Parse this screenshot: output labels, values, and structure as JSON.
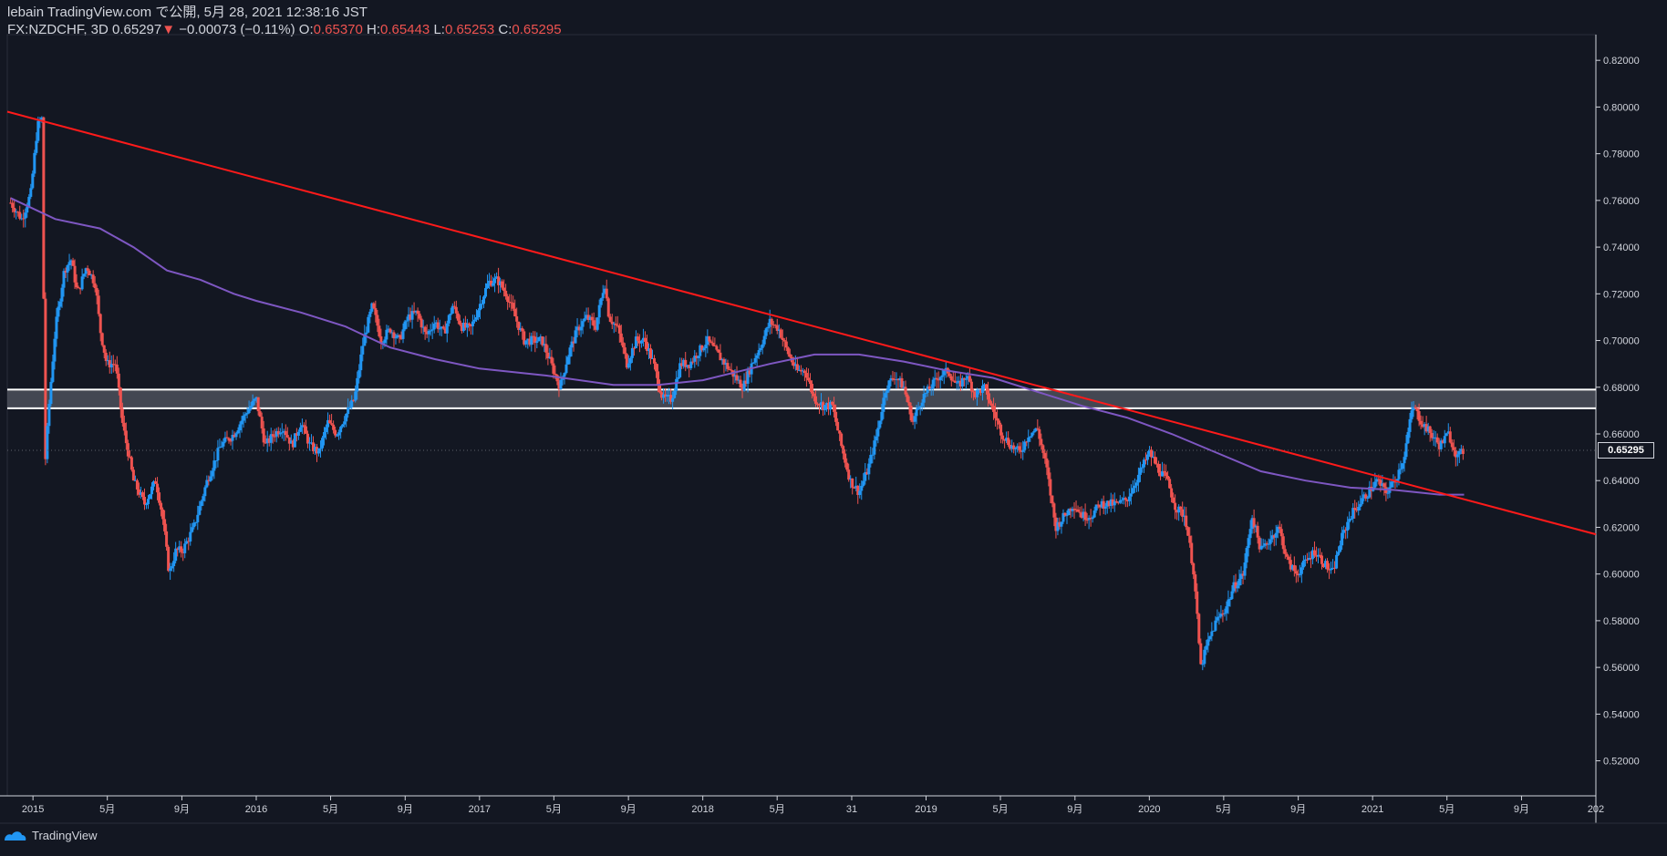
{
  "header": {
    "publisher_line": "lebain TradingView.com で公開, 5月 28, 2021 12:38:16 JST",
    "symbol": "FX:NZDCHF, 3D",
    "last": "0.65297",
    "change_arrow": "▼",
    "change": "−0.00073 (−0.11%)",
    "o_label": "O:",
    "o_val": "0.65370",
    "h_label": "H:",
    "h_val": "0.65443",
    "l_label": "L:",
    "l_val": "0.65253",
    "c_label": "C:",
    "c_val": "0.65295"
  },
  "footer": {
    "brand": "TradingView"
  },
  "colors": {
    "background": "#131722",
    "up": "#2196f3",
    "down": "#ef5350",
    "trendline": "#ff1a1a",
    "ma": "#7e57c2",
    "zone_border": "#ffffff",
    "zone_fill": "#6b6f7a"
  },
  "chart_data": {
    "type": "candlestick",
    "symbol": "FX:NZDCHF",
    "timeframe": "3D",
    "y_ticks": [
      "0.82000",
      "0.80000",
      "0.78000",
      "0.76000",
      "0.74000",
      "0.72000",
      "0.70000",
      "0.68000",
      "0.66000",
      "0.64000",
      "0.62000",
      "0.60000",
      "0.58000",
      "0.56000",
      "0.54000",
      "0.52000"
    ],
    "ylim": [
      0.505,
      0.831
    ],
    "x_tick_labels": [
      "2015",
      "5月",
      "9月",
      "2016",
      "5月",
      "9月",
      "2017",
      "5月",
      "9月",
      "2018",
      "5月",
      "31",
      "2019",
      "5月",
      "9月",
      "2020",
      "5月",
      "9月",
      "2021",
      "5月",
      "9月",
      "202"
    ],
    "x_ticks_t": [
      2015.0,
      2015.333,
      2015.667,
      2016.0,
      2016.333,
      2016.667,
      2017.0,
      2017.333,
      2017.667,
      2018.0,
      2018.333,
      2018.667,
      2019.0,
      2019.333,
      2019.667,
      2020.0,
      2020.333,
      2020.667,
      2021.0,
      2021.333,
      2021.667,
      2022.0
    ],
    "xlim": [
      2014.885,
      2022.0
    ],
    "last_price_label": "0.65295",
    "last_price": 0.65295,
    "price_path": [
      [
        2014.9,
        0.759
      ],
      [
        2014.95,
        0.752
      ],
      [
        2014.99,
        0.763
      ],
      [
        2015.02,
        0.792
      ],
      [
        2015.04,
        0.795
      ],
      [
        2015.055,
        0.648
      ],
      [
        2015.07,
        0.67
      ],
      [
        2015.1,
        0.705
      ],
      [
        2015.14,
        0.73
      ],
      [
        2015.17,
        0.735
      ],
      [
        2015.2,
        0.72
      ],
      [
        2015.24,
        0.732
      ],
      [
        2015.28,
        0.724
      ],
      [
        2015.3,
        0.705
      ],
      [
        2015.33,
        0.69
      ],
      [
        2015.37,
        0.69
      ],
      [
        2015.4,
        0.665
      ],
      [
        2015.45,
        0.64
      ],
      [
        2015.5,
        0.63
      ],
      [
        2015.55,
        0.64
      ],
      [
        2015.58,
        0.625
      ],
      [
        2015.61,
        0.6
      ],
      [
        2015.64,
        0.61
      ],
      [
        2015.67,
        0.61
      ],
      [
        2015.72,
        0.62
      ],
      [
        2015.78,
        0.64
      ],
      [
        2015.84,
        0.655
      ],
      [
        2015.9,
        0.66
      ],
      [
        2015.96,
        0.67
      ],
      [
        2016.0,
        0.675
      ],
      [
        2016.04,
        0.655
      ],
      [
        2016.08,
        0.66
      ],
      [
        2016.12,
        0.663
      ],
      [
        2016.16,
        0.655
      ],
      [
        2016.2,
        0.665
      ],
      [
        2016.24,
        0.655
      ],
      [
        2016.28,
        0.652
      ],
      [
        2016.32,
        0.665
      ],
      [
        2016.36,
        0.66
      ],
      [
        2016.4,
        0.668
      ],
      [
        2016.44,
        0.675
      ],
      [
        2016.48,
        0.7
      ],
      [
        2016.52,
        0.715
      ],
      [
        2016.56,
        0.7
      ],
      [
        2016.6,
        0.705
      ],
      [
        2016.64,
        0.7
      ],
      [
        2016.68,
        0.71
      ],
      [
        2016.72,
        0.712
      ],
      [
        2016.76,
        0.702
      ],
      [
        2016.8,
        0.708
      ],
      [
        2016.84,
        0.703
      ],
      [
        2016.88,
        0.715
      ],
      [
        2016.92,
        0.706
      ],
      [
        2016.96,
        0.705
      ],
      [
        2017.0,
        0.715
      ],
      [
        2017.04,
        0.725
      ],
      [
        2017.08,
        0.726
      ],
      [
        2017.12,
        0.72
      ],
      [
        2017.16,
        0.71
      ],
      [
        2017.2,
        0.7
      ],
      [
        2017.24,
        0.7
      ],
      [
        2017.28,
        0.7
      ],
      [
        2017.32,
        0.69
      ],
      [
        2017.36,
        0.68
      ],
      [
        2017.4,
        0.695
      ],
      [
        2017.44,
        0.705
      ],
      [
        2017.48,
        0.71
      ],
      [
        2017.52,
        0.706
      ],
      [
        2017.56,
        0.725
      ],
      [
        2017.58,
        0.71
      ],
      [
        2017.62,
        0.705
      ],
      [
        2017.66,
        0.69
      ],
      [
        2017.7,
        0.7
      ],
      [
        2017.74,
        0.7
      ],
      [
        2017.78,
        0.69
      ],
      [
        2017.82,
        0.675
      ],
      [
        2017.86,
        0.675
      ],
      [
        2017.9,
        0.69
      ],
      [
        2017.94,
        0.69
      ],
      [
        2017.98,
        0.695
      ],
      [
        2018.02,
        0.7
      ],
      [
        2018.06,
        0.695
      ],
      [
        2018.1,
        0.69
      ],
      [
        2018.14,
        0.685
      ],
      [
        2018.18,
        0.68
      ],
      [
        2018.22,
        0.69
      ],
      [
        2018.26,
        0.698
      ],
      [
        2018.3,
        0.708
      ],
      [
        2018.34,
        0.705
      ],
      [
        2018.38,
        0.695
      ],
      [
        2018.42,
        0.687
      ],
      [
        2018.46,
        0.687
      ],
      [
        2018.5,
        0.675
      ],
      [
        2018.54,
        0.672
      ],
      [
        2018.58,
        0.672
      ],
      [
        2018.62,
        0.655
      ],
      [
        2018.66,
        0.64
      ],
      [
        2018.7,
        0.635
      ],
      [
        2018.74,
        0.645
      ],
      [
        2018.78,
        0.66
      ],
      [
        2018.82,
        0.68
      ],
      [
        2018.86,
        0.685
      ],
      [
        2018.9,
        0.68
      ],
      [
        2018.94,
        0.665
      ],
      [
        2018.98,
        0.675
      ],
      [
        2019.02,
        0.68
      ],
      [
        2019.06,
        0.685
      ],
      [
        2019.1,
        0.687
      ],
      [
        2019.14,
        0.68
      ],
      [
        2019.18,
        0.685
      ],
      [
        2019.22,
        0.677
      ],
      [
        2019.26,
        0.68
      ],
      [
        2019.3,
        0.67
      ],
      [
        2019.34,
        0.66
      ],
      [
        2019.38,
        0.655
      ],
      [
        2019.42,
        0.652
      ],
      [
        2019.46,
        0.66
      ],
      [
        2019.5,
        0.662
      ],
      [
        2019.54,
        0.645
      ],
      [
        2019.58,
        0.62
      ],
      [
        2019.62,
        0.625
      ],
      [
        2019.66,
        0.63
      ],
      [
        2019.7,
        0.625
      ],
      [
        2019.74,
        0.625
      ],
      [
        2019.78,
        0.63
      ],
      [
        2019.82,
        0.63
      ],
      [
        2019.86,
        0.63
      ],
      [
        2019.9,
        0.632
      ],
      [
        2019.94,
        0.64
      ],
      [
        2019.98,
        0.648
      ],
      [
        2020.0,
        0.652
      ],
      [
        2020.04,
        0.645
      ],
      [
        2020.08,
        0.64
      ],
      [
        2020.12,
        0.628
      ],
      [
        2020.16,
        0.625
      ],
      [
        2020.2,
        0.6
      ],
      [
        2020.23,
        0.56
      ],
      [
        2020.26,
        0.57
      ],
      [
        2020.3,
        0.58
      ],
      [
        2020.34,
        0.585
      ],
      [
        2020.38,
        0.595
      ],
      [
        2020.42,
        0.6
      ],
      [
        2020.46,
        0.625
      ],
      [
        2020.5,
        0.61
      ],
      [
        2020.54,
        0.615
      ],
      [
        2020.58,
        0.62
      ],
      [
        2020.62,
        0.605
      ],
      [
        2020.66,
        0.6
      ],
      [
        2020.7,
        0.605
      ],
      [
        2020.74,
        0.61
      ],
      [
        2020.78,
        0.605
      ],
      [
        2020.82,
        0.6
      ],
      [
        2020.86,
        0.615
      ],
      [
        2020.9,
        0.625
      ],
      [
        2020.94,
        0.63
      ],
      [
        2020.98,
        0.635
      ],
      [
        2021.02,
        0.64
      ],
      [
        2021.06,
        0.635
      ],
      [
        2021.1,
        0.64
      ],
      [
        2021.14,
        0.65
      ],
      [
        2021.18,
        0.672
      ],
      [
        2021.22,
        0.665
      ],
      [
        2021.26,
        0.66
      ],
      [
        2021.3,
        0.655
      ],
      [
        2021.34,
        0.66
      ],
      [
        2021.38,
        0.65
      ],
      [
        2021.41,
        0.653
      ]
    ],
    "ma_path": [
      [
        2014.9,
        0.761
      ],
      [
        2015.1,
        0.752
      ],
      [
        2015.3,
        0.748
      ],
      [
        2015.45,
        0.74
      ],
      [
        2015.6,
        0.73
      ],
      [
        2015.75,
        0.726
      ],
      [
        2015.9,
        0.72
      ],
      [
        2016.0,
        0.717
      ],
      [
        2016.2,
        0.712
      ],
      [
        2016.4,
        0.706
      ],
      [
        2016.6,
        0.697
      ],
      [
        2016.8,
        0.692
      ],
      [
        2017.0,
        0.688
      ],
      [
        2017.3,
        0.685
      ],
      [
        2017.6,
        0.681
      ],
      [
        2017.8,
        0.681
      ],
      [
        2018.0,
        0.683
      ],
      [
        2018.3,
        0.69
      ],
      [
        2018.5,
        0.694
      ],
      [
        2018.7,
        0.694
      ],
      [
        2018.9,
        0.691
      ],
      [
        2019.1,
        0.687
      ],
      [
        2019.3,
        0.684
      ],
      [
        2019.5,
        0.678
      ],
      [
        2019.7,
        0.672
      ],
      [
        2019.9,
        0.667
      ],
      [
        2020.1,
        0.66
      ],
      [
        2020.3,
        0.652
      ],
      [
        2020.5,
        0.644
      ],
      [
        2020.7,
        0.64
      ],
      [
        2020.9,
        0.637
      ],
      [
        2021.1,
        0.636
      ],
      [
        2021.3,
        0.634
      ],
      [
        2021.41,
        0.634
      ]
    ],
    "trendline": [
      [
        2014.885,
        0.798
      ],
      [
        2022.0,
        0.617
      ]
    ],
    "zone": [
      0.671,
      0.679
    ]
  }
}
